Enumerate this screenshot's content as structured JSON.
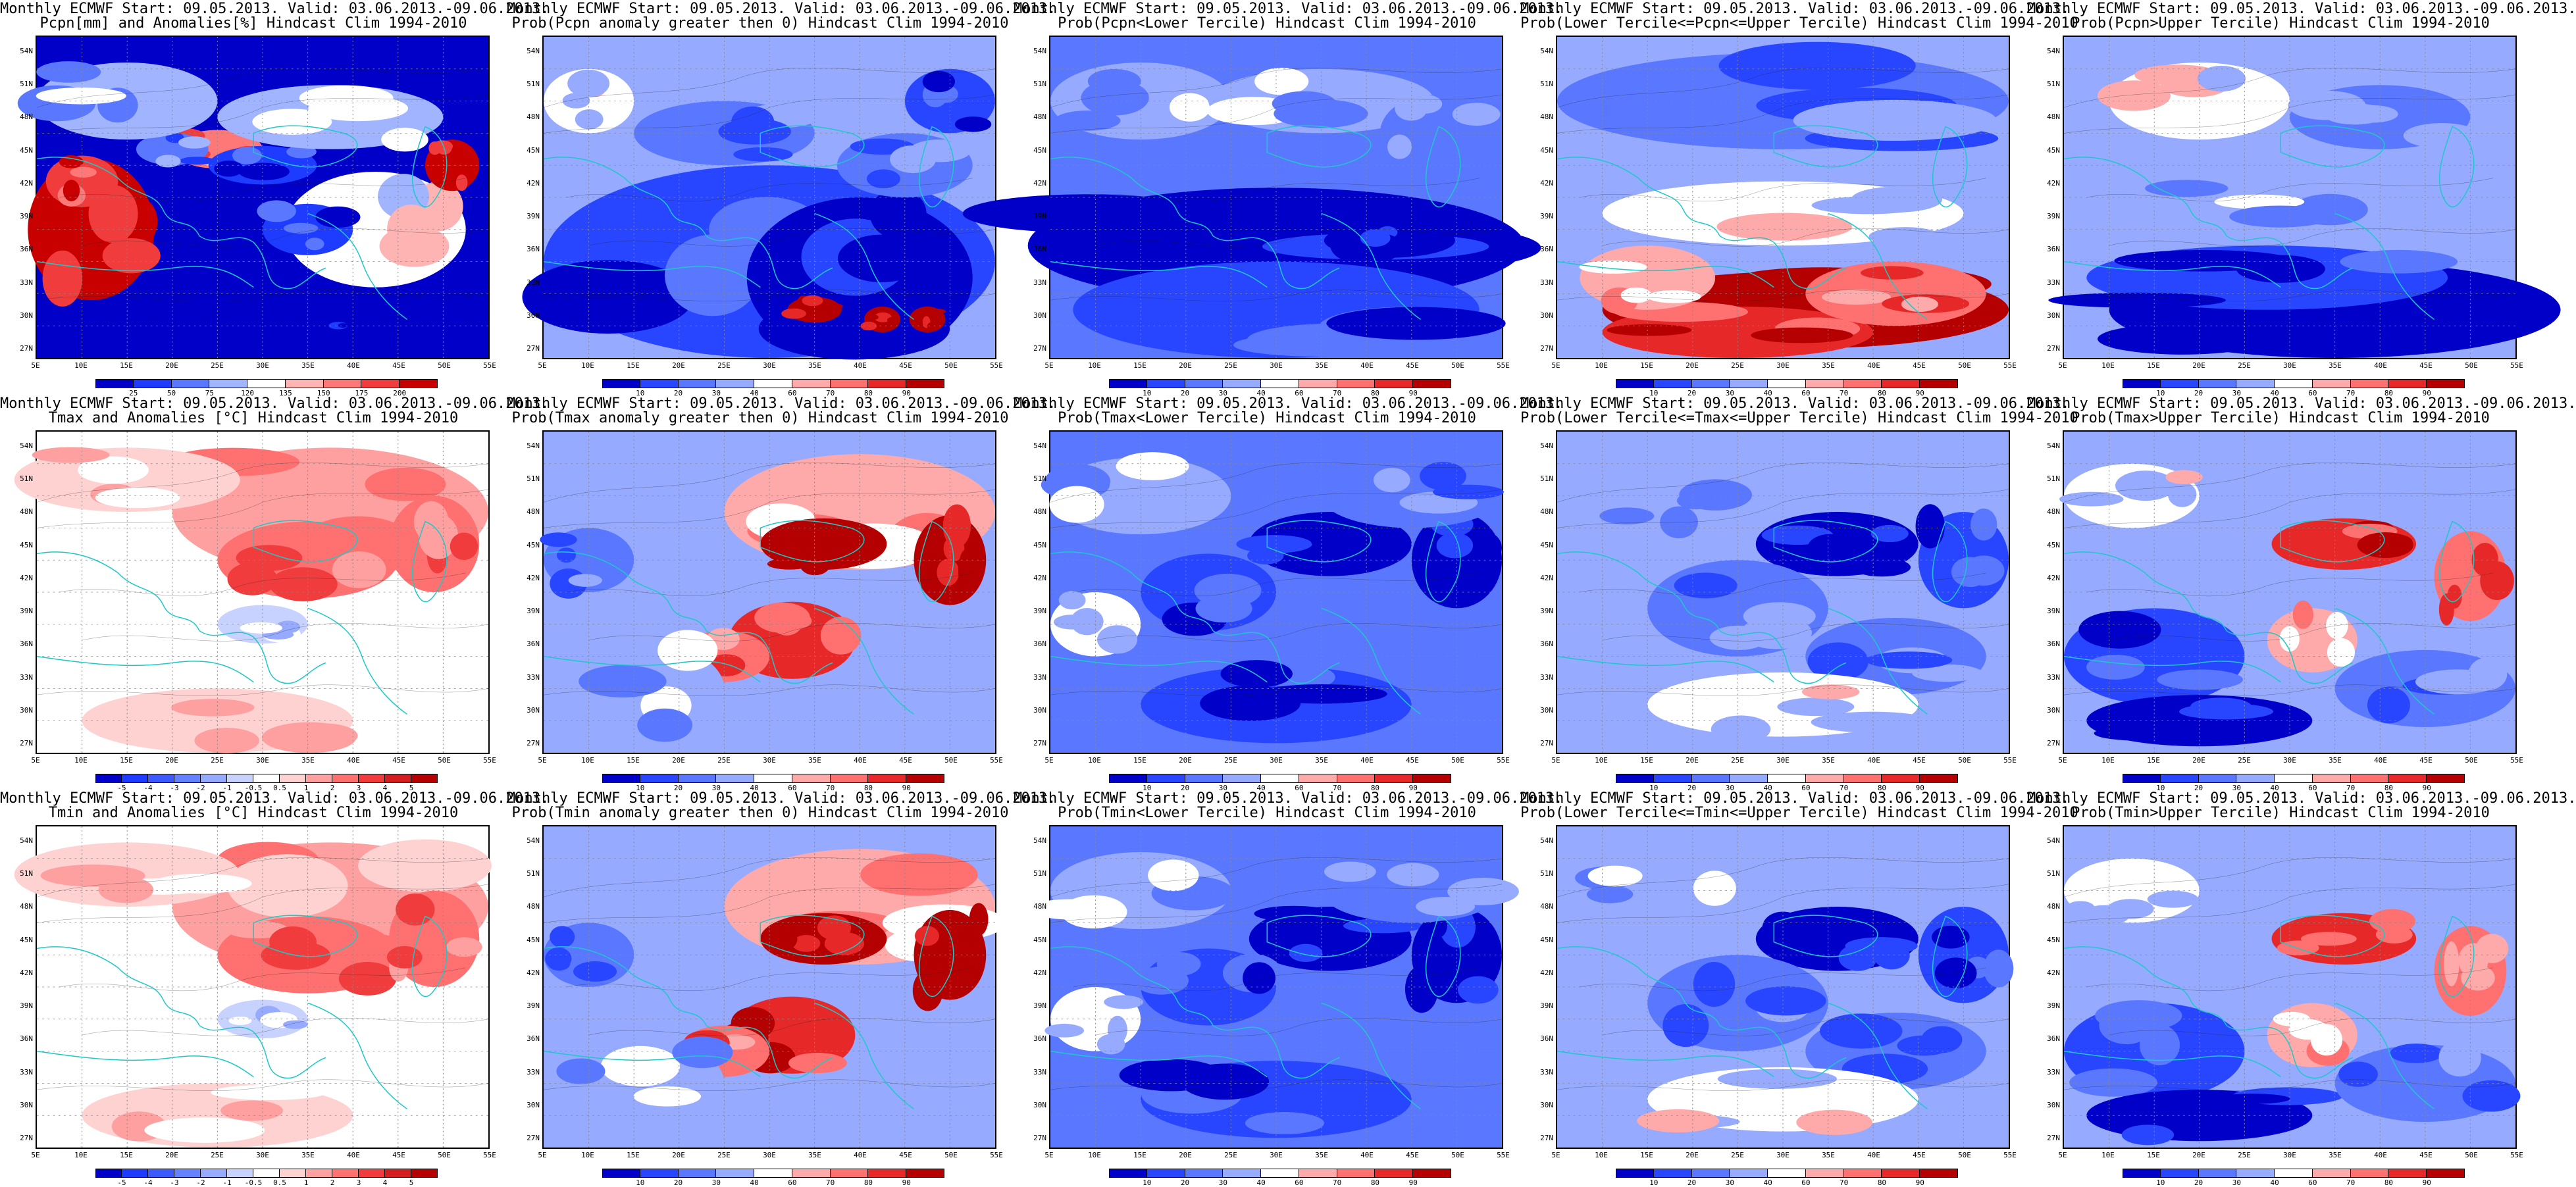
{
  "lat_labels": [
    "54N",
    "51N",
    "48N",
    "45N",
    "42N",
    "39N",
    "36N",
    "33N",
    "30N",
    "27N"
  ],
  "lon_labels": [
    "5E",
    "10E",
    "15E",
    "20E",
    "25E",
    "30E",
    "35E",
    "40E",
    "45E",
    "50E",
    "55E"
  ],
  "colorbars": {
    "pcpn": {
      "ticks": [
        "25",
        "50",
        "75",
        "120",
        "135",
        "150",
        "175",
        "200"
      ],
      "colors": [
        "#0000c8",
        "#1e3cff",
        "#5a78ff",
        "#a0b4ff",
        "#ffffff",
        "#ffb4b4",
        "#ff7878",
        "#f03c3c",
        "#c80000"
      ]
    },
    "temp": {
      "ticks": [
        "-5",
        "-4",
        "-3",
        "-2",
        "-1",
        "-0.5",
        "0.5",
        "1",
        "2",
        "3",
        "4",
        "5"
      ],
      "colors": [
        "#0000c8",
        "#1e3cff",
        "#3c5aff",
        "#6482ff",
        "#96aaff",
        "#c8d2ff",
        "#ffffff",
        "#ffd2d2",
        "#ffa0a0",
        "#ff7070",
        "#f03c3c",
        "#d21e1e",
        "#b40000"
      ]
    },
    "prob": {
      "ticks": [
        "10",
        "20",
        "30",
        "40",
        "60",
        "70",
        "80",
        "90"
      ],
      "colors": [
        "#0000c8",
        "#2846ff",
        "#5a78ff",
        "#96aaff",
        "#ffffff",
        "#ffaaaa",
        "#ff7070",
        "#e62828",
        "#b40000"
      ]
    }
  },
  "panels": [
    {
      "line1": "Monthly ECMWF Start: 09.05.2013. Valid: 03.06.2013.-09.06.2013.",
      "line2": "Pcpn[mm] and Anomalies[%] Hindcast Clim 1994-2010",
      "colorbar": "pcpn",
      "theme": "pcpn_anom"
    },
    {
      "line1": "Monthly ECMWF Start: 09.05.2013. Valid: 03.06.2013.-09.06.2013.",
      "line2": "Prob(Pcpn anomaly greater then 0) Hindcast Clim 1994-2010",
      "colorbar": "prob",
      "theme": "pcpn_prob"
    },
    {
      "line1": "Monthly ECMWF Start: 09.05.2013. Valid: 03.06.2013.-09.06.2013.",
      "line2": "Prob(Pcpn<Lower Tercile) Hindcast Clim 1994-2010",
      "colorbar": "prob",
      "theme": "pcpn_lower"
    },
    {
      "line1": "Monthly ECMWF Start: 09.05.2013. Valid: 03.06.2013.-09.06.2013.",
      "line2": "Prob(Lower Tercile<=Pcpn<=Upper Tercile) Hindcast Clim 1994-2010",
      "colorbar": "prob",
      "theme": "pcpn_mid"
    },
    {
      "line1": "Monthly ECMWF Start: 09.05.2013. Valid: 03.06.2013.-09.06.2013.",
      "line2": "Prob(Pcpn>Upper Tercile) Hindcast Clim 1994-2010",
      "colorbar": "prob",
      "theme": "pcpn_upper"
    },
    {
      "line1": "Monthly ECMWF Start: 09.05.2013. Valid: 03.06.2013.-09.06.2013.",
      "line2": "Tmax and Anomalies [°C] Hindcast Clim 1994-2010",
      "colorbar": "temp",
      "theme": "t_anom"
    },
    {
      "line1": "Monthly ECMWF Start: 09.05.2013. Valid: 03.06.2013.-09.06.2013.",
      "line2": "Prob(Tmax anomaly greater then 0) Hindcast Clim 1994-2010",
      "colorbar": "prob",
      "theme": "t_prob"
    },
    {
      "line1": "Monthly ECMWF Start: 09.05.2013. Valid: 03.06.2013.-09.06.2013.",
      "line2": "Prob(Tmax<Lower Tercile) Hindcast Clim 1994-2010",
      "colorbar": "prob",
      "theme": "t_lower"
    },
    {
      "line1": "Monthly ECMWF Start: 09.05.2013. Valid: 03.06.2013.-09.06.2013.",
      "line2": "Prob(Lower Tercile<=Tmax<=Upper Tercile) Hindcast Clim 1994-2010",
      "colorbar": "prob",
      "theme": "t_mid"
    },
    {
      "line1": "Monthly ECMWF Start: 09.05.2013. Valid: 03.06.2013.-09.06.2013.",
      "line2": "Prob(Tmax>Upper Tercile) Hindcast Clim 1994-2010",
      "colorbar": "prob",
      "theme": "t_upper"
    },
    {
      "line1": "Monthly ECMWF Start: 09.05.2013. Valid: 03.06.2013.-09.06.2013.",
      "line2": "Tmin and Anomalies [°C] Hindcast Clim 1994-2010",
      "colorbar": "temp",
      "theme": "t_anom"
    },
    {
      "line1": "Monthly ECMWF Start: 09.05.2013. Valid: 03.06.2013.-09.06.2013.",
      "line2": "Prob(Tmin anomaly greater then 0) Hindcast Clim 1994-2010",
      "colorbar": "prob",
      "theme": "t_prob"
    },
    {
      "line1": "Monthly ECMWF Start: 09.05.2013. Valid: 03.06.2013.-09.06.2013.",
      "line2": "Prob(Tmin<Lower Tercile) Hindcast Clim 1994-2010",
      "colorbar": "prob",
      "theme": "t_lower"
    },
    {
      "line1": "Monthly ECMWF Start: 09.05.2013. Valid: 03.06.2013.-09.06.2013.",
      "line2": "Prob(Lower Tercile<=Tmin<=Upper Tercile) Hindcast Clim 1994-2010",
      "colorbar": "prob",
      "theme": "t_mid"
    },
    {
      "line1": "Monthly ECMWF Start: 09.05.2013. Valid: 03.06.2013.-09.06.2013.",
      "line2": "Prob(Tmin>Upper Tercile) Hindcast Clim 1994-2010",
      "colorbar": "prob",
      "theme": "t_upper"
    }
  ]
}
